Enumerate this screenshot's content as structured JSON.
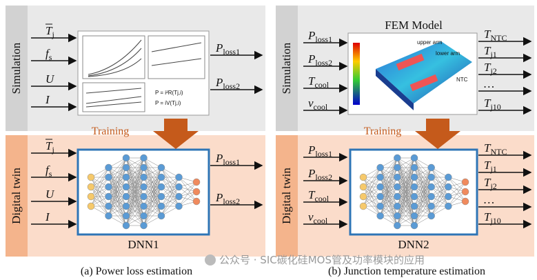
{
  "panels": [
    {
      "sim_label": "Simulation",
      "twin_label": "Digital twin",
      "training": "Training",
      "sim_inputs": [
        {
          "base": "T",
          "sub": "j"
        },
        {
          "base": "f",
          "sub": "s"
        },
        {
          "base": "U"
        },
        {
          "base": "I"
        }
      ],
      "sim_outputs": [
        {
          "base": "P",
          "sub": "loss1"
        },
        {
          "base": "P",
          "sub": "loss2"
        }
      ],
      "twin_inputs": [
        {
          "base": "T",
          "sub": "j"
        },
        {
          "base": "f",
          "sub": "s"
        },
        {
          "base": "U"
        },
        {
          "base": "I"
        }
      ],
      "twin_outputs": [
        {
          "base": "P",
          "sub": "loss1"
        },
        {
          "base": "P",
          "sub": "loss2"
        }
      ],
      "model_label": "DNN1",
      "caption": "(a) Power loss estimation"
    },
    {
      "sim_label": "Simulation",
      "twin_label": "Digital twin",
      "training": "Training",
      "fem_title": "FEM Model",
      "fem_notes": [
        "upper arm",
        "lower arm",
        "NTC"
      ],
      "sim_inputs": [
        {
          "base": "P",
          "sub": "loss1"
        },
        {
          "base": "P",
          "sub": "loss2"
        },
        {
          "base": "T",
          "sub": "cool"
        },
        {
          "base": "v",
          "sub": "cool"
        }
      ],
      "sim_outputs": [
        {
          "base": "T",
          "sub": "NTC"
        },
        {
          "base": "T",
          "sub": "j1"
        },
        {
          "base": "T",
          "sub": "j2"
        },
        {
          "base": "…"
        },
        {
          "base": "T",
          "sub": "j10"
        }
      ],
      "twin_inputs": [
        {
          "base": "P",
          "sub": "loss1"
        },
        {
          "base": "P",
          "sub": "loss2"
        },
        {
          "base": "T",
          "sub": "cool"
        },
        {
          "base": "v",
          "sub": "cool"
        }
      ],
      "twin_outputs": [
        {
          "base": "T",
          "sub": "NTC"
        },
        {
          "base": "T",
          "sub": "j1"
        },
        {
          "base": "T",
          "sub": "j2"
        },
        {
          "base": "…"
        },
        {
          "base": "T",
          "sub": "j10"
        }
      ],
      "model_label": "DNN2",
      "caption": "(b) Junction temperature estimation"
    }
  ],
  "watermark": "公众号 · SIC碳化硅MOS管及功率模块的应用"
}
